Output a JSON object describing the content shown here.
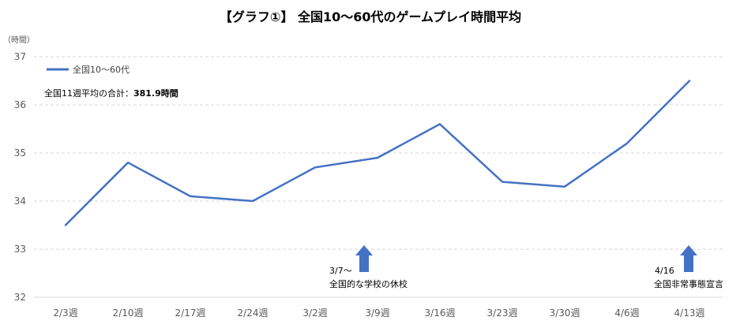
{
  "chart_data": {
    "type": "line",
    "title": "【グラフ①】 全国10〜60代のゲームプレイ時間平均",
    "ylabel": "（時間）",
    "xlabel": "",
    "categories": [
      "2/3週",
      "2/10週",
      "2/17週",
      "2/24週",
      "3/2週",
      "3/9週",
      "3/16週",
      "3/23週",
      "3/30週",
      "4/6週",
      "4/13週"
    ],
    "series": [
      {
        "name": "全国10〜60代",
        "values": [
          33.5,
          34.8,
          34.1,
          34.0,
          34.7,
          34.9,
          35.6,
          34.4,
          34.3,
          35.2,
          36.5
        ],
        "color": "#4472C4"
      }
    ],
    "ylim": [
      32,
      37
    ],
    "yticks": [
      32,
      33,
      34,
      35,
      36,
      37
    ],
    "grid": true,
    "legend": "top-left",
    "note": {
      "label": "全国11週平均の合計：",
      "value": "381.9時間"
    },
    "annotations": [
      {
        "date": "3/7〜",
        "text": "全国的な学校の休校",
        "color": "#4472C4"
      },
      {
        "date": "4/16",
        "text": "全国非常事態宣言",
        "color": "#4472C4"
      }
    ]
  }
}
